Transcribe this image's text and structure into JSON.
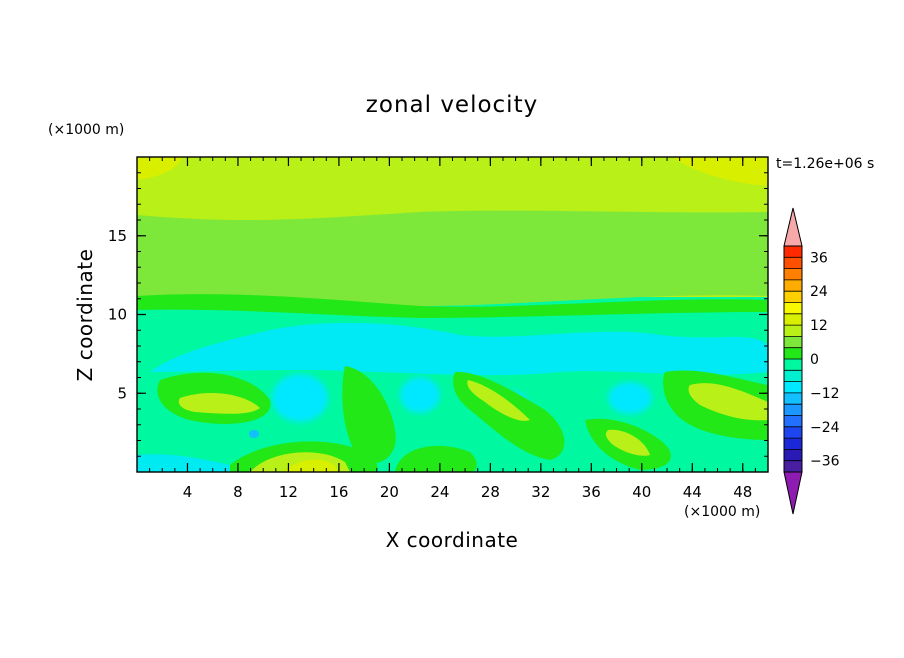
{
  "chart_data": {
    "type": "heatmap",
    "title": "zonal velocity",
    "xlabel": "X coordinate",
    "ylabel": "Z coordinate",
    "x_units": "(×1000 m)",
    "y_units": "(×1000 m)",
    "time_label": "t=1.26e+06 s",
    "xlim": [
      0,
      50
    ],
    "ylim": [
      0,
      20
    ],
    "x_ticks": [
      4,
      8,
      12,
      16,
      20,
      24,
      28,
      32,
      36,
      40,
      44,
      48
    ],
    "y_ticks": [
      5,
      10,
      15
    ],
    "colorbar": {
      "levels": [
        -40,
        -36,
        -32,
        -28,
        -24,
        -20,
        -16,
        -12,
        -8,
        -4,
        0,
        4,
        8,
        12,
        16,
        20,
        24,
        28,
        32,
        36,
        40
      ],
      "labels": [
        36,
        24,
        12,
        0,
        -12,
        -24,
        -36
      ],
      "colors": [
        "#4a1ea0",
        "#2a1ab5",
        "#1a28d8",
        "#1e46f0",
        "#2270ff",
        "#1a98ff",
        "#12bfff",
        "#00e8ff",
        "#00f0d0",
        "#00f8a0",
        "#22e818",
        "#7ee83a",
        "#b8f018",
        "#d8f000",
        "#f8f800",
        "#ffd000",
        "#ffac00",
        "#ff8000",
        "#ff5000",
        "#ff2a00"
      ],
      "under_color": "#8f1cb0",
      "over_color": "#f7a8a8",
      "extend": "both"
    },
    "field_description_levels_by_height": [
      {
        "z_range": [
          16.5,
          20
        ],
        "value_range": [
          4,
          12
        ]
      },
      {
        "z_range": [
          11,
          16.5
        ],
        "value_range": [
          0,
          8
        ]
      },
      {
        "z_range": [
          10,
          11
        ],
        "value_range": [
          -4,
          4
        ]
      },
      {
        "z_range": [
          0,
          10
        ],
        "value_range": [
          -12,
          4
        ]
      }
    ]
  }
}
